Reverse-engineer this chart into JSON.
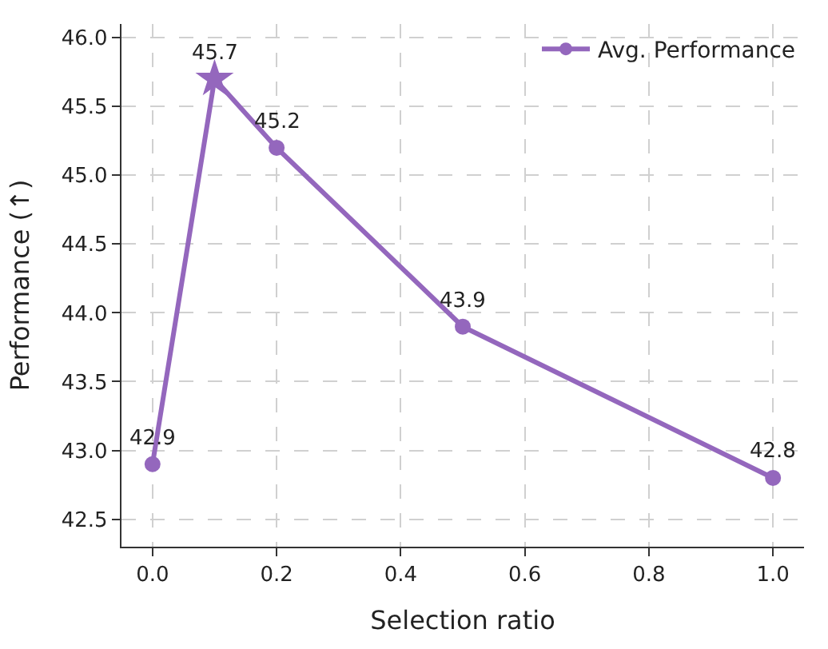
{
  "chart_data": {
    "type": "line",
    "xlabel": "Selection ratio",
    "ylabel": "Performance (↑)",
    "x": [
      0.0,
      0.1,
      0.2,
      0.5,
      1.0
    ],
    "series": [
      {
        "name": "Avg. Performance",
        "color": "#9467bd",
        "values": [
          42.9,
          45.7,
          45.2,
          43.9,
          42.8
        ],
        "value_labels": [
          "42.9",
          "45.7",
          "45.2",
          "43.9",
          "42.8"
        ],
        "marker": "circle"
      },
      {
        "type": "scatter",
        "color": "#9467bd",
        "x": [
          0.1
        ],
        "values": [
          45.7
        ],
        "marker": "star"
      }
    ],
    "xlim": [
      -0.05,
      1.05
    ],
    "xticks": [
      {
        "value": 0.0,
        "label": "0.0"
      },
      {
        "value": 0.2,
        "label": "0.2"
      },
      {
        "value": 0.4,
        "label": "0.4"
      },
      {
        "value": 0.6,
        "label": "0.6"
      },
      {
        "value": 0.8,
        "label": "0.8"
      },
      {
        "value": 1.0,
        "label": "1.0"
      }
    ],
    "ylim": [
      42.3,
      46.1
    ],
    "yticks": [
      {
        "value": 42.5,
        "label": "42.5"
      },
      {
        "value": 43.0,
        "label": "43.0"
      },
      {
        "value": 43.5,
        "label": "43.5"
      },
      {
        "value": 44.0,
        "label": "44.0"
      },
      {
        "value": 44.5,
        "label": "44.5"
      },
      {
        "value": 45.0,
        "label": "45.0"
      },
      {
        "value": 45.5,
        "label": "45.5"
      },
      {
        "value": 46.0,
        "label": "46.0"
      }
    ],
    "grid": true,
    "legend": "top right",
    "line_style": "solid"
  }
}
